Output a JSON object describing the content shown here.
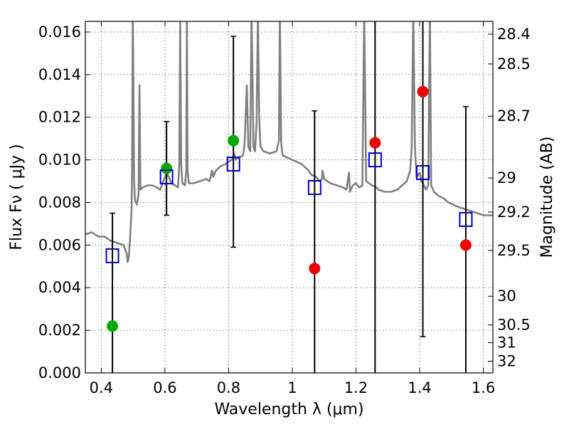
{
  "chart_data": {
    "type": "scatter",
    "xlabel": "Wavelength  λ (μm)",
    "ylabel": "Flux  Fν  ( μJy )",
    "ylabel_right": "Magnitude (AB)",
    "xlim": [
      0.35,
      1.63
    ],
    "ylim": [
      0.0,
      0.0165
    ],
    "grid": true,
    "x_ticks": [
      0.4,
      0.6,
      0.8,
      1.0,
      1.2,
      1.4,
      1.6
    ],
    "x_tick_labels": [
      "0.4",
      "0.6",
      "0.8",
      "1",
      "1.2",
      "1.4",
      "1.6"
    ],
    "y_ticks": [
      0.0,
      0.002,
      0.004,
      0.006,
      0.008,
      0.01,
      0.012,
      0.014,
      0.016
    ],
    "y_tick_labels": [
      "0.000",
      "0.002",
      "0.004",
      "0.006",
      "0.008",
      "0.010",
      "0.012",
      "0.014",
      "0.016"
    ],
    "right_axis_ticks": [
      {
        "label": "28.4",
        "flux": 0.0159
      },
      {
        "label": "28.5",
        "flux": 0.0145
      },
      {
        "label": "28.7",
        "flux": 0.01205
      },
      {
        "label": "29",
        "flux": 0.00915
      },
      {
        "label": "29.2",
        "flux": 0.00755
      },
      {
        "label": "29.5",
        "flux": 0.00575
      },
      {
        "label": "30",
        "flux": 0.0036
      },
      {
        "label": "30.5",
        "flux": 0.00225
      },
      {
        "label": "31",
        "flux": 0.00142
      },
      {
        "label": "32",
        "flux": 0.00055
      }
    ],
    "sed_model": {
      "color": "#808080",
      "points": [
        [
          0.35,
          0.0065
        ],
        [
          0.37,
          0.0066
        ],
        [
          0.39,
          0.0064
        ],
        [
          0.41,
          0.0064
        ],
        [
          0.43,
          0.0062
        ],
        [
          0.45,
          0.0061
        ],
        [
          0.47,
          0.006
        ],
        [
          0.48,
          0.0056
        ],
        [
          0.483,
          0.0052
        ],
        [
          0.487,
          0.0055
        ],
        [
          0.49,
          0.0062
        ],
        [
          0.495,
          0.0076
        ],
        [
          0.497,
          0.0098
        ],
        [
          0.499,
          0.017
        ],
        [
          0.501,
          0.0135
        ],
        [
          0.503,
          0.009
        ],
        [
          0.506,
          0.0081
        ],
        [
          0.512,
          0.0079
        ],
        [
          0.517,
          0.0084
        ],
        [
          0.52,
          0.0135
        ],
        [
          0.523,
          0.0086
        ],
        [
          0.53,
          0.0087
        ],
        [
          0.545,
          0.0088
        ],
        [
          0.56,
          0.0088
        ],
        [
          0.575,
          0.0087
        ],
        [
          0.585,
          0.0086
        ],
        [
          0.595,
          0.009
        ],
        [
          0.605,
          0.0094
        ],
        [
          0.612,
          0.0092
        ],
        [
          0.62,
          0.0089
        ],
        [
          0.632,
          0.0088
        ],
        [
          0.641,
          0.0087
        ],
        [
          0.645,
          0.0098
        ],
        [
          0.648,
          0.0165
        ],
        [
          0.651,
          0.0098
        ],
        [
          0.655,
          0.0089
        ],
        [
          0.663,
          0.0088
        ],
        [
          0.667,
          0.0095
        ],
        [
          0.669,
          0.017
        ],
        [
          0.671,
          0.0095
        ],
        [
          0.675,
          0.0089
        ],
        [
          0.69,
          0.0089
        ],
        [
          0.71,
          0.009
        ],
        [
          0.73,
          0.0091
        ],
        [
          0.74,
          0.009
        ],
        [
          0.748,
          0.0095
        ],
        [
          0.752,
          0.0092
        ],
        [
          0.76,
          0.0095
        ],
        [
          0.775,
          0.0097
        ],
        [
          0.79,
          0.0098
        ],
        [
          0.8,
          0.0099
        ],
        [
          0.81,
          0.01
        ],
        [
          0.818,
          0.0103
        ],
        [
          0.822,
          0.01
        ],
        [
          0.83,
          0.0101
        ],
        [
          0.845,
          0.0102
        ],
        [
          0.85,
          0.0107
        ],
        [
          0.857,
          0.0135
        ],
        [
          0.862,
          0.0106
        ],
        [
          0.868,
          0.0104
        ],
        [
          0.872,
          0.017
        ],
        [
          0.878,
          0.0106
        ],
        [
          0.883,
          0.0104
        ],
        [
          0.888,
          0.0118
        ],
        [
          0.892,
          0.017
        ],
        [
          0.896,
          0.012
        ],
        [
          0.9,
          0.0106
        ],
        [
          0.91,
          0.0104
        ],
        [
          0.93,
          0.0103
        ],
        [
          0.95,
          0.0104
        ],
        [
          0.958,
          0.0109
        ],
        [
          0.961,
          0.017
        ],
        [
          0.965,
          0.0108
        ],
        [
          0.97,
          0.0102
        ],
        [
          0.985,
          0.0101
        ],
        [
          1.0,
          0.01
        ],
        [
          1.015,
          0.0099
        ],
        [
          1.03,
          0.0098
        ],
        [
          1.05,
          0.0095
        ],
        [
          1.06,
          0.0093
        ],
        [
          1.075,
          0.0092
        ],
        [
          1.085,
          0.009
        ],
        [
          1.093,
          0.0091
        ],
        [
          1.095,
          0.0095
        ],
        [
          1.1,
          0.0091
        ],
        [
          1.12,
          0.0089
        ],
        [
          1.14,
          0.0088
        ],
        [
          1.16,
          0.0087
        ],
        [
          1.17,
          0.0086
        ],
        [
          1.178,
          0.0094
        ],
        [
          1.181,
          0.0085
        ],
        [
          1.19,
          0.0088
        ],
        [
          1.2,
          0.0089
        ],
        [
          1.21,
          0.0087
        ],
        [
          1.22,
          0.0088
        ],
        [
          1.226,
          0.017
        ],
        [
          1.232,
          0.009
        ],
        [
          1.25,
          0.0088
        ],
        [
          1.265,
          0.0087
        ],
        [
          1.27,
          0.0086
        ],
        [
          1.29,
          0.0085
        ],
        [
          1.31,
          0.0085
        ],
        [
          1.33,
          0.0086
        ],
        [
          1.345,
          0.0088
        ],
        [
          1.36,
          0.009
        ],
        [
          1.37,
          0.0095
        ],
        [
          1.375,
          0.0105
        ],
        [
          1.38,
          0.017
        ],
        [
          1.385,
          0.0107
        ],
        [
          1.39,
          0.0092
        ],
        [
          1.4,
          0.0094
        ],
        [
          1.405,
          0.009
        ],
        [
          1.41,
          0.0089
        ],
        [
          1.42,
          0.0086
        ],
        [
          1.427,
          0.0088
        ],
        [
          1.432,
          0.017
        ],
        [
          1.436,
          0.0088
        ],
        [
          1.445,
          0.0085
        ],
        [
          1.46,
          0.0083
        ],
        [
          1.475,
          0.0082
        ],
        [
          1.49,
          0.008
        ],
        [
          1.505,
          0.0079
        ],
        [
          1.52,
          0.0078
        ],
        [
          1.54,
          0.0077
        ],
        [
          1.56,
          0.0076
        ],
        [
          1.58,
          0.0075
        ],
        [
          1.6,
          0.0074
        ],
        [
          1.63,
          0.0074
        ]
      ]
    },
    "series": [
      {
        "marker": "circle",
        "color": "#00aa00",
        "points": [
          {
            "x": 0.435,
            "y": 0.0022
          },
          {
            "x": 0.605,
            "y": 0.0096
          },
          {
            "x": 0.815,
            "y": 0.0109
          }
        ]
      },
      {
        "marker": "circle",
        "color": "#ee0000",
        "points": [
          {
            "x": 1.07,
            "y": 0.0049
          },
          {
            "x": 1.26,
            "y": 0.0108
          },
          {
            "x": 1.41,
            "y": 0.0132
          },
          {
            "x": 1.545,
            "y": 0.006
          }
        ]
      },
      {
        "marker": "square-open",
        "color": "#0000cc",
        "points": [
          {
            "x": 0.435,
            "y": 0.0055
          },
          {
            "x": 0.605,
            "y": 0.0092
          },
          {
            "x": 0.815,
            "y": 0.0098
          },
          {
            "x": 1.07,
            "y": 0.0087
          },
          {
            "x": 1.26,
            "y": 0.01
          },
          {
            "x": 1.41,
            "y": 0.0094
          },
          {
            "x": 1.545,
            "y": 0.0072
          }
        ]
      }
    ],
    "error_bars": [
      {
        "x": 0.435,
        "low": 0.0,
        "high": 0.0075
      },
      {
        "x": 0.605,
        "low": 0.0074,
        "high": 0.0118
      },
      {
        "x": 0.815,
        "low": 0.0059,
        "high": 0.0158
      },
      {
        "x": 1.07,
        "low": 0.0,
        "high": 0.0123
      },
      {
        "x": 1.26,
        "low": 0.0,
        "high": 0.0165
      },
      {
        "x": 1.41,
        "low": 0.0017,
        "high": 0.0165
      },
      {
        "x": 1.545,
        "low": 0.0,
        "high": 0.0125
      }
    ]
  }
}
